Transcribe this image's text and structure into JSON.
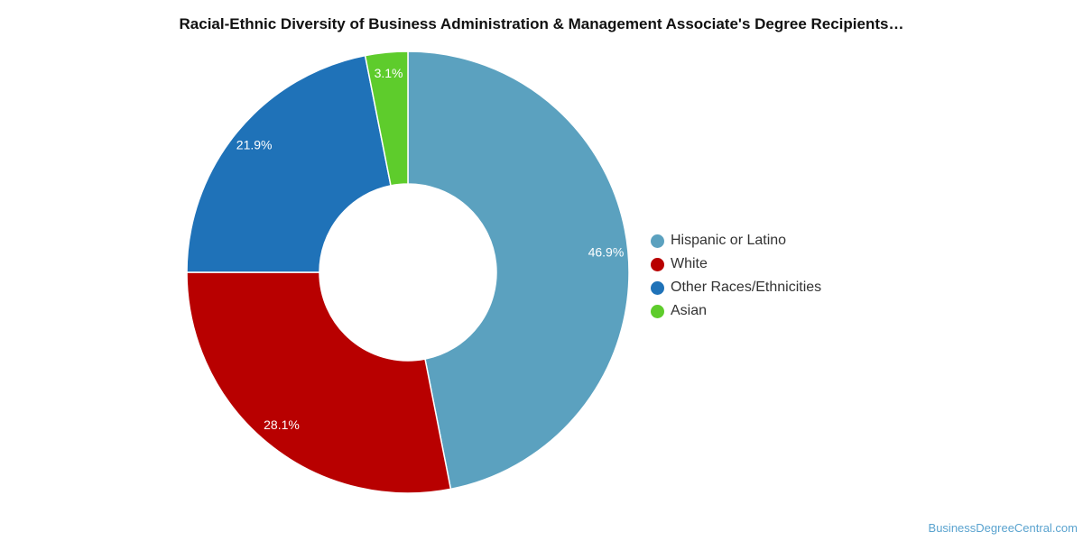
{
  "chart_data": {
    "type": "pie",
    "title": "Racial-Ethnic Diversity of Business Administration & Management Associate's Degree Recipients…",
    "categories": [
      "Hispanic or Latino",
      "White",
      "Other Races/Ethnicities",
      "Asian"
    ],
    "values": [
      46.9,
      28.1,
      21.9,
      3.1
    ],
    "labels": [
      "46.9%",
      "28.1%",
      "21.9%",
      "3.1%"
    ],
    "colors": [
      "#5ba1bf",
      "#b80000",
      "#1f72b8",
      "#5ecc2c"
    ],
    "donut": true,
    "legend_position": "right"
  },
  "footer": {
    "credit": "BusinessDegreeCentral.com"
  }
}
